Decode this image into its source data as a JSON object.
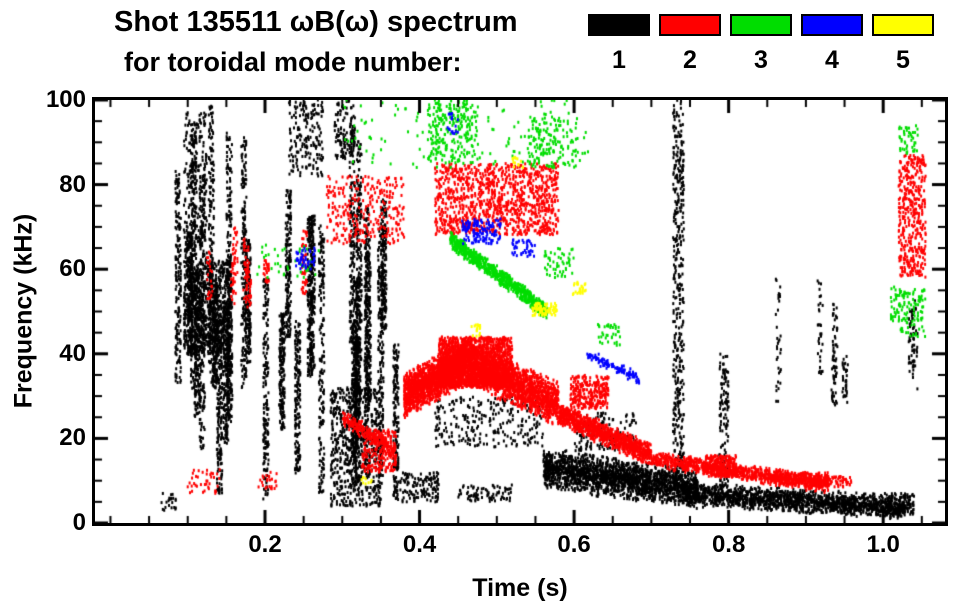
{
  "title": {
    "line1": "Shot 135511 ωB(ω) spectrum",
    "line2": "for toroidal mode number:"
  },
  "legend": {
    "modes": [
      {
        "label": "1",
        "color": "#000000"
      },
      {
        "label": "2",
        "color": "#ff0000"
      },
      {
        "label": "3",
        "color": "#00dd00"
      },
      {
        "label": "4",
        "color": "#0000ff"
      },
      {
        "label": "5",
        "color": "#ffff00"
      }
    ]
  },
  "chart_data": {
    "type": "scatter",
    "title": "Shot 135511 ωB(ω) spectrum for toroidal mode number 1-5",
    "xlabel": "Time (s)",
    "ylabel": "Frequency (kHz)",
    "xlim": [
      -0.02,
      1.08
    ],
    "ylim": [
      0,
      100
    ],
    "xticks": [
      0.2,
      0.4,
      0.6,
      0.8,
      1.0
    ],
    "xtick_labels": [
      "0.2",
      "0.4",
      "0.6",
      "0.8",
      "1.0"
    ],
    "x_minor_step": 0.05,
    "yticks": [
      0,
      20,
      40,
      60,
      80,
      100
    ],
    "ytick_labels": [
      "0",
      "20",
      "40",
      "60",
      "80",
      "100"
    ],
    "y_minor_step": 5,
    "grid": false,
    "legend_position": "top-right",
    "series": [
      {
        "name": "n=1",
        "color": "#000000",
        "clusters": [
          {
            "shape": "stripes",
            "t": [
              0.085,
              0.37
            ],
            "f": [
              3,
              99
            ],
            "stripes": 30,
            "n": 5400
          },
          {
            "shape": "blob",
            "t": [
              0.095,
              0.155
            ],
            "f": [
              40,
              62
            ],
            "n": 800
          },
          {
            "shape": "blob",
            "t": [
              0.095,
              0.125
            ],
            "f": [
              62,
              97
            ],
            "n": 260
          },
          {
            "shape": "blob",
            "t": [
              0.285,
              0.35
            ],
            "f": [
              4,
              32
            ],
            "n": 650
          },
          {
            "shape": "blob",
            "t": [
              0.23,
              0.275
            ],
            "f": [
              82,
              100
            ],
            "n": 180
          },
          {
            "shape": "blob",
            "t": [
              0.29,
              0.315
            ],
            "f": [
              86,
              100
            ],
            "n": 100
          },
          {
            "shape": "trace",
            "t": [
              0.56,
              0.76
            ],
            "f": [
              13,
              8
            ],
            "df": 5,
            "n": 2000
          },
          {
            "shape": "trace",
            "t": [
              0.74,
              1.03
            ],
            "f": [
              7,
              3.5
            ],
            "df": 3,
            "n": 1600
          },
          {
            "shape": "blob",
            "t": [
              0.42,
              0.56
            ],
            "f": [
              18,
              30
            ],
            "n": 260
          },
          {
            "shape": "blob",
            "t": [
              0.6,
              0.68
            ],
            "f": [
              17,
              26
            ],
            "n": 150
          },
          {
            "shape": "blob",
            "t": [
              0.728,
              0.742
            ],
            "f": [
              8,
              100
            ],
            "n": 430
          },
          {
            "shape": "blob",
            "t": [
              0.788,
              0.8
            ],
            "f": [
              8,
              40
            ],
            "n": 120
          },
          {
            "shape": "stripes",
            "t": [
              0.84,
              1.06
            ],
            "f": [
              25,
              62
            ],
            "stripes": 7,
            "n": 240
          },
          {
            "shape": "blob",
            "t": [
              1.0,
              1.04
            ],
            "f": [
              2,
              7
            ],
            "n": 120
          },
          {
            "shape": "blob",
            "t": [
              0.375,
              0.425
            ],
            "f": [
              5,
              12
            ],
            "n": 130
          },
          {
            "shape": "blob",
            "t": [
              0.45,
              0.52
            ],
            "f": [
              5,
              9
            ],
            "n": 80
          },
          {
            "shape": "blob",
            "t": [
              0.065,
              0.085
            ],
            "f": [
              3,
              7
            ],
            "n": 22
          }
        ]
      },
      {
        "name": "n=2",
        "color": "#ff0000",
        "clusters": [
          {
            "shape": "trace",
            "t": [
              0.38,
              0.46
            ],
            "f": [
              30,
              38
            ],
            "df": 5.5,
            "n": 1700
          },
          {
            "shape": "blob",
            "t": [
              0.425,
              0.52
            ],
            "f": [
              32,
              44
            ],
            "n": 1500
          },
          {
            "shape": "trace",
            "t": [
              0.46,
              0.58
            ],
            "f": [
              38,
              28
            ],
            "df": 5.5,
            "n": 1700
          },
          {
            "shape": "trace",
            "t": [
              0.58,
              0.7
            ],
            "f": [
              26,
              16
            ],
            "df": 3,
            "n": 1000
          },
          {
            "shape": "trace",
            "t": [
              0.7,
              0.93
            ],
            "f": [
              15,
              9
            ],
            "df": 2.2,
            "n": 950
          },
          {
            "shape": "blob",
            "t": [
              0.91,
              0.96
            ],
            "f": [
              8.5,
              11
            ],
            "n": 80
          },
          {
            "shape": "blob",
            "t": [
              0.42,
              0.58
            ],
            "f": [
              68,
              85
            ],
            "n": 1100
          },
          {
            "shape": "blob",
            "t": [
              0.28,
              0.38
            ],
            "f": [
              66,
              82
            ],
            "n": 280
          },
          {
            "shape": "trace",
            "t": [
              0.3,
              0.37
            ],
            "f": [
              25,
              17
            ],
            "df": 2,
            "n": 200
          },
          {
            "shape": "stripes",
            "t": [
              0.12,
              0.28
            ],
            "f": [
              50,
              70
            ],
            "stripes": 9,
            "n": 220
          },
          {
            "shape": "blob",
            "t": [
              1.02,
              1.055
            ],
            "f": [
              58,
              87
            ],
            "n": 420
          },
          {
            "shape": "blob",
            "t": [
              0.595,
              0.645
            ],
            "f": [
              27,
              35
            ],
            "n": 260
          },
          {
            "shape": "blob",
            "t": [
              0.325,
              0.37
            ],
            "f": [
              12,
              22
            ],
            "n": 220
          },
          {
            "shape": "blob",
            "t": [
              0.1,
              0.145
            ],
            "f": [
              7,
              13
            ],
            "n": 40
          },
          {
            "shape": "blob",
            "t": [
              0.19,
              0.215
            ],
            "f": [
              8,
              12
            ],
            "n": 25
          },
          {
            "shape": "blob",
            "t": [
              0.77,
              0.81
            ],
            "f": [
              11,
              16
            ],
            "n": 200
          },
          {
            "shape": "blob",
            "t": [
              0.86,
              0.93
            ],
            "f": [
              9,
              12
            ],
            "n": 180
          }
        ]
      },
      {
        "name": "n=3",
        "color": "#00dd00",
        "clusters": [
          {
            "shape": "trace",
            "t": [
              0.44,
              0.565
            ],
            "f": [
              67,
              50
            ],
            "df": 2.2,
            "n": 800
          },
          {
            "shape": "blob",
            "t": [
              0.41,
              0.475
            ],
            "f": [
              85,
              100
            ],
            "n": 230
          },
          {
            "shape": "blob",
            "t": [
              0.54,
              0.605
            ],
            "f": [
              84,
              96
            ],
            "n": 150
          },
          {
            "shape": "blob",
            "t": [
              0.3,
              0.62
            ],
            "f": [
              84,
              100
            ],
            "n": 130
          },
          {
            "shape": "blob",
            "t": [
              1.01,
              1.055
            ],
            "f": [
              44,
              56
            ],
            "n": 130
          },
          {
            "shape": "blob",
            "t": [
              1.02,
              1.045
            ],
            "f": [
              87,
              94
            ],
            "n": 45
          },
          {
            "shape": "blob",
            "t": [
              0.19,
              0.27
            ],
            "f": [
              58,
              66
            ],
            "n": 40
          },
          {
            "shape": "blob",
            "t": [
              0.56,
              0.6
            ],
            "f": [
              58,
              65
            ],
            "n": 50
          },
          {
            "shape": "blob",
            "t": [
              0.63,
              0.66
            ],
            "f": [
              42,
              47
            ],
            "n": 35
          }
        ]
      },
      {
        "name": "n=4",
        "color": "#0000ff",
        "clusters": [
          {
            "shape": "blob",
            "t": [
              0.455,
              0.505
            ],
            "f": [
              66,
              72
            ],
            "n": 130
          },
          {
            "shape": "trace",
            "t": [
              0.615,
              0.685
            ],
            "f": [
              40,
              34
            ],
            "df": 1.5,
            "n": 110
          },
          {
            "shape": "blob",
            "t": [
              0.24,
              0.265
            ],
            "f": [
              60,
              65
            ],
            "n": 45
          },
          {
            "shape": "blob",
            "t": [
              0.435,
              0.45
            ],
            "f": [
              92,
              97
            ],
            "n": 18
          },
          {
            "shape": "blob",
            "t": [
              0.52,
              0.55
            ],
            "f": [
              63,
              67
            ],
            "n": 40
          }
        ]
      },
      {
        "name": "n=5",
        "color": "#ffff00",
        "clusters": [
          {
            "shape": "blob",
            "t": [
              0.545,
              0.578
            ],
            "f": [
              49,
              52
            ],
            "n": 70
          },
          {
            "shape": "blob",
            "t": [
              0.598,
              0.615
            ],
            "f": [
              54,
              57
            ],
            "n": 25
          },
          {
            "shape": "blob",
            "t": [
              0.465,
              0.48
            ],
            "f": [
              44,
              47
            ],
            "n": 18
          },
          {
            "shape": "blob",
            "t": [
              0.52,
              0.535
            ],
            "f": [
              84,
              87
            ],
            "n": 14
          },
          {
            "shape": "blob",
            "t": [
              0.325,
              0.34
            ],
            "f": [
              9,
              11
            ],
            "n": 10
          }
        ]
      }
    ]
  }
}
